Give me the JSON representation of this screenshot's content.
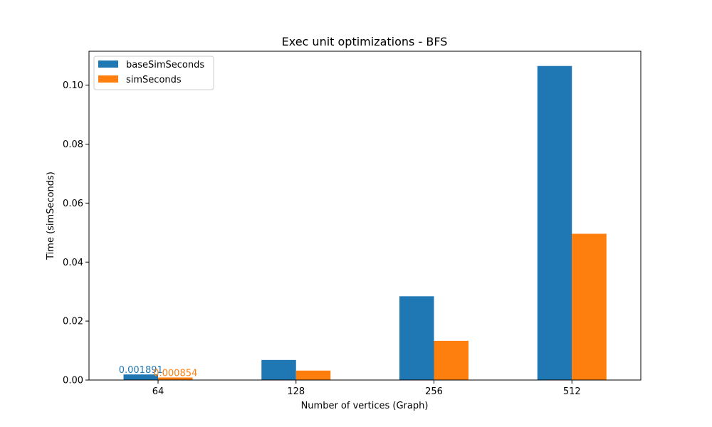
{
  "chart_data": {
    "type": "bar",
    "title": "Exec unit optimizations - BFS",
    "xlabel": "Number of vertices (Graph)",
    "ylabel": "Time (simSeconds)",
    "categories": [
      "64",
      "128",
      "256",
      "512"
    ],
    "ylim": [
      0,
      0.1115
    ],
    "yticks": [
      0.0,
      0.02,
      0.04,
      0.06,
      0.08,
      0.1
    ],
    "ytick_labels": [
      "0.00",
      "0.02",
      "0.04",
      "0.06",
      "0.08",
      "0.10"
    ],
    "grid": false,
    "legend_position": "top-left",
    "series": [
      {
        "name": "baseSimSeconds",
        "color": "#1f77b4",
        "values": [
          0.001891,
          0.0068,
          0.0284,
          0.1065
        ]
      },
      {
        "name": "simSeconds",
        "color": "#ff7f0e",
        "values": [
          0.000854,
          0.0032,
          0.0133,
          0.0496
        ]
      }
    ],
    "annotations": [
      {
        "series": 0,
        "category": 0,
        "text": "0.001891"
      },
      {
        "series": 1,
        "category": 0,
        "text": "0.000854"
      }
    ]
  }
}
